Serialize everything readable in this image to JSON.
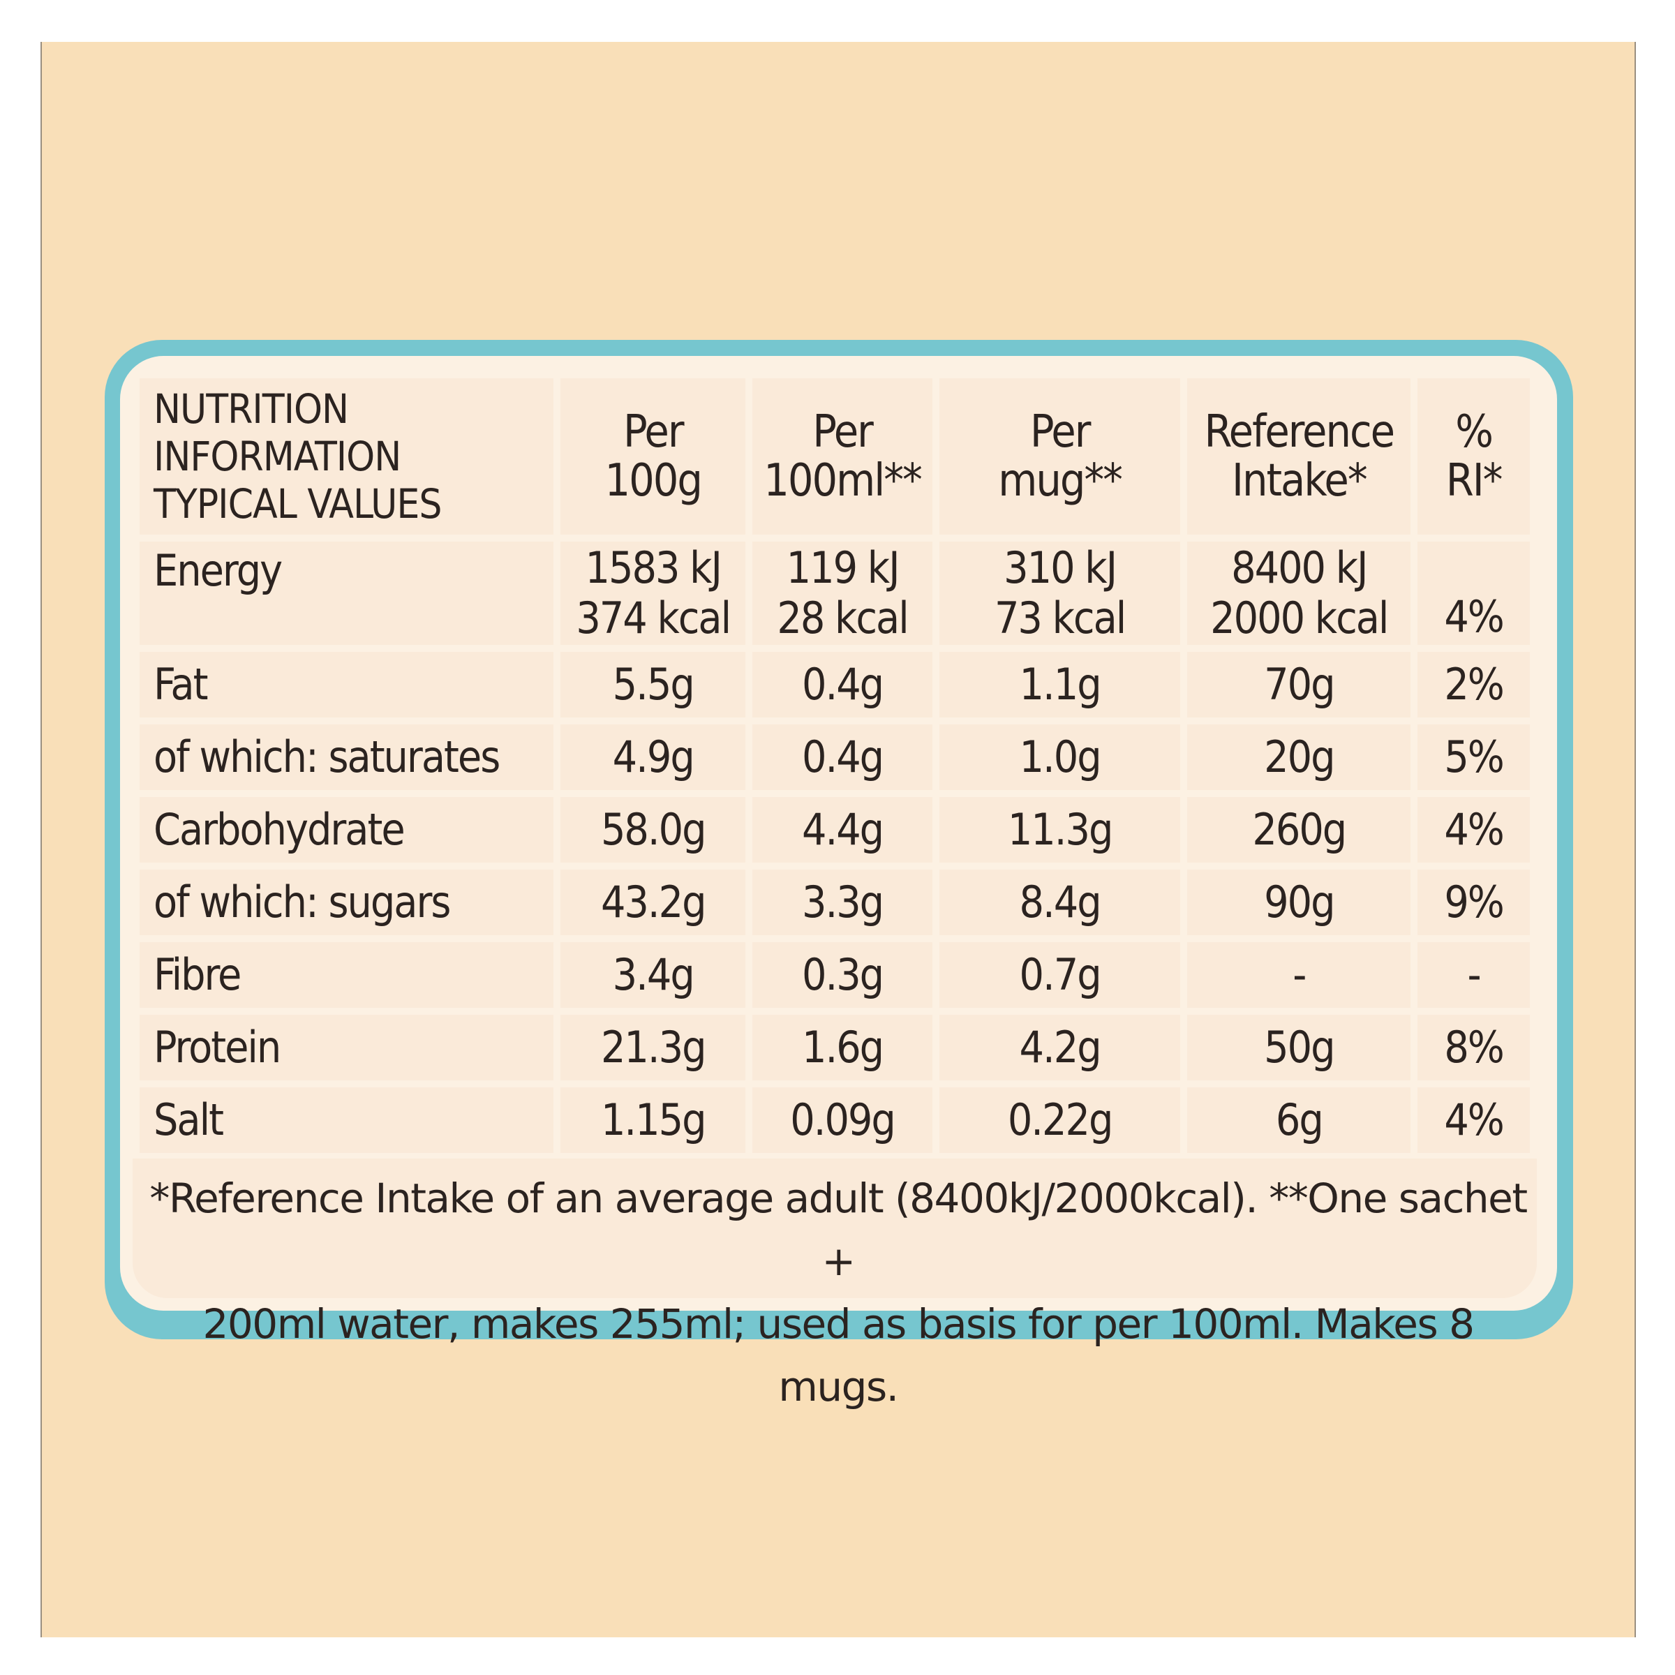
{
  "table": {
    "title_lines": [
      "NUTRITION",
      "INFORMATION",
      "TYPICAL VALUES"
    ],
    "columns": [
      [
        "Per",
        "100g"
      ],
      [
        "Per",
        "100ml**"
      ],
      [
        "Per",
        "mug**"
      ],
      [
        "Reference",
        "Intake*"
      ],
      [
        "%",
        "RI*"
      ]
    ],
    "energy": {
      "label": "Energy",
      "per100g": [
        "1583 kJ",
        "374 kcal"
      ],
      "per100ml": [
        "119 kJ",
        "28 kcal"
      ],
      "permug": [
        "310 kJ",
        "73 kcal"
      ],
      "ri": [
        "8400 kJ",
        "2000 kcal"
      ],
      "pct": "4%"
    },
    "rows": [
      {
        "label": "Fat",
        "per100g": "5.5g",
        "per100ml": "0.4g",
        "permug": "1.1g",
        "ri": "70g",
        "pct": "2%"
      },
      {
        "label": "of which: saturates",
        "per100g": "4.9g",
        "per100ml": "0.4g",
        "permug": "1.0g",
        "ri": "20g",
        "pct": "5%"
      },
      {
        "label": "Carbohydrate",
        "per100g": "58.0g",
        "per100ml": "4.4g",
        "permug": "11.3g",
        "ri": "260g",
        "pct": "4%"
      },
      {
        "label": "of which: sugars",
        "per100g": "43.2g",
        "per100ml": "3.3g",
        "permug": "8.4g",
        "ri": "90g",
        "pct": "9%"
      },
      {
        "label": "Fibre",
        "per100g": "3.4g",
        "per100ml": "0.3g",
        "permug": "0.7g",
        "ri": "-",
        "pct": "-"
      },
      {
        "label": "Protein",
        "per100g": "21.3g",
        "per100ml": "1.6g",
        "permug": "4.2g",
        "ri": "50g",
        "pct": "8%"
      },
      {
        "label": "Salt",
        "per100g": "1.15g",
        "per100ml": "0.09g",
        "permug": "0.22g",
        "ri": "6g",
        "pct": "4%"
      }
    ]
  },
  "footnote": {
    "line1": "*Reference Intake of an average adult (8400kJ/2000kcal). **One sachet +",
    "line2": "200ml water, makes 255ml; used as basis for per 100ml. Makes 8 mugs."
  },
  "colors": {
    "background": "#f9dfb8",
    "border": "#76c6cf",
    "panel": "#fcf1e3",
    "cell": "#faead9",
    "text": "#2b2320"
  }
}
